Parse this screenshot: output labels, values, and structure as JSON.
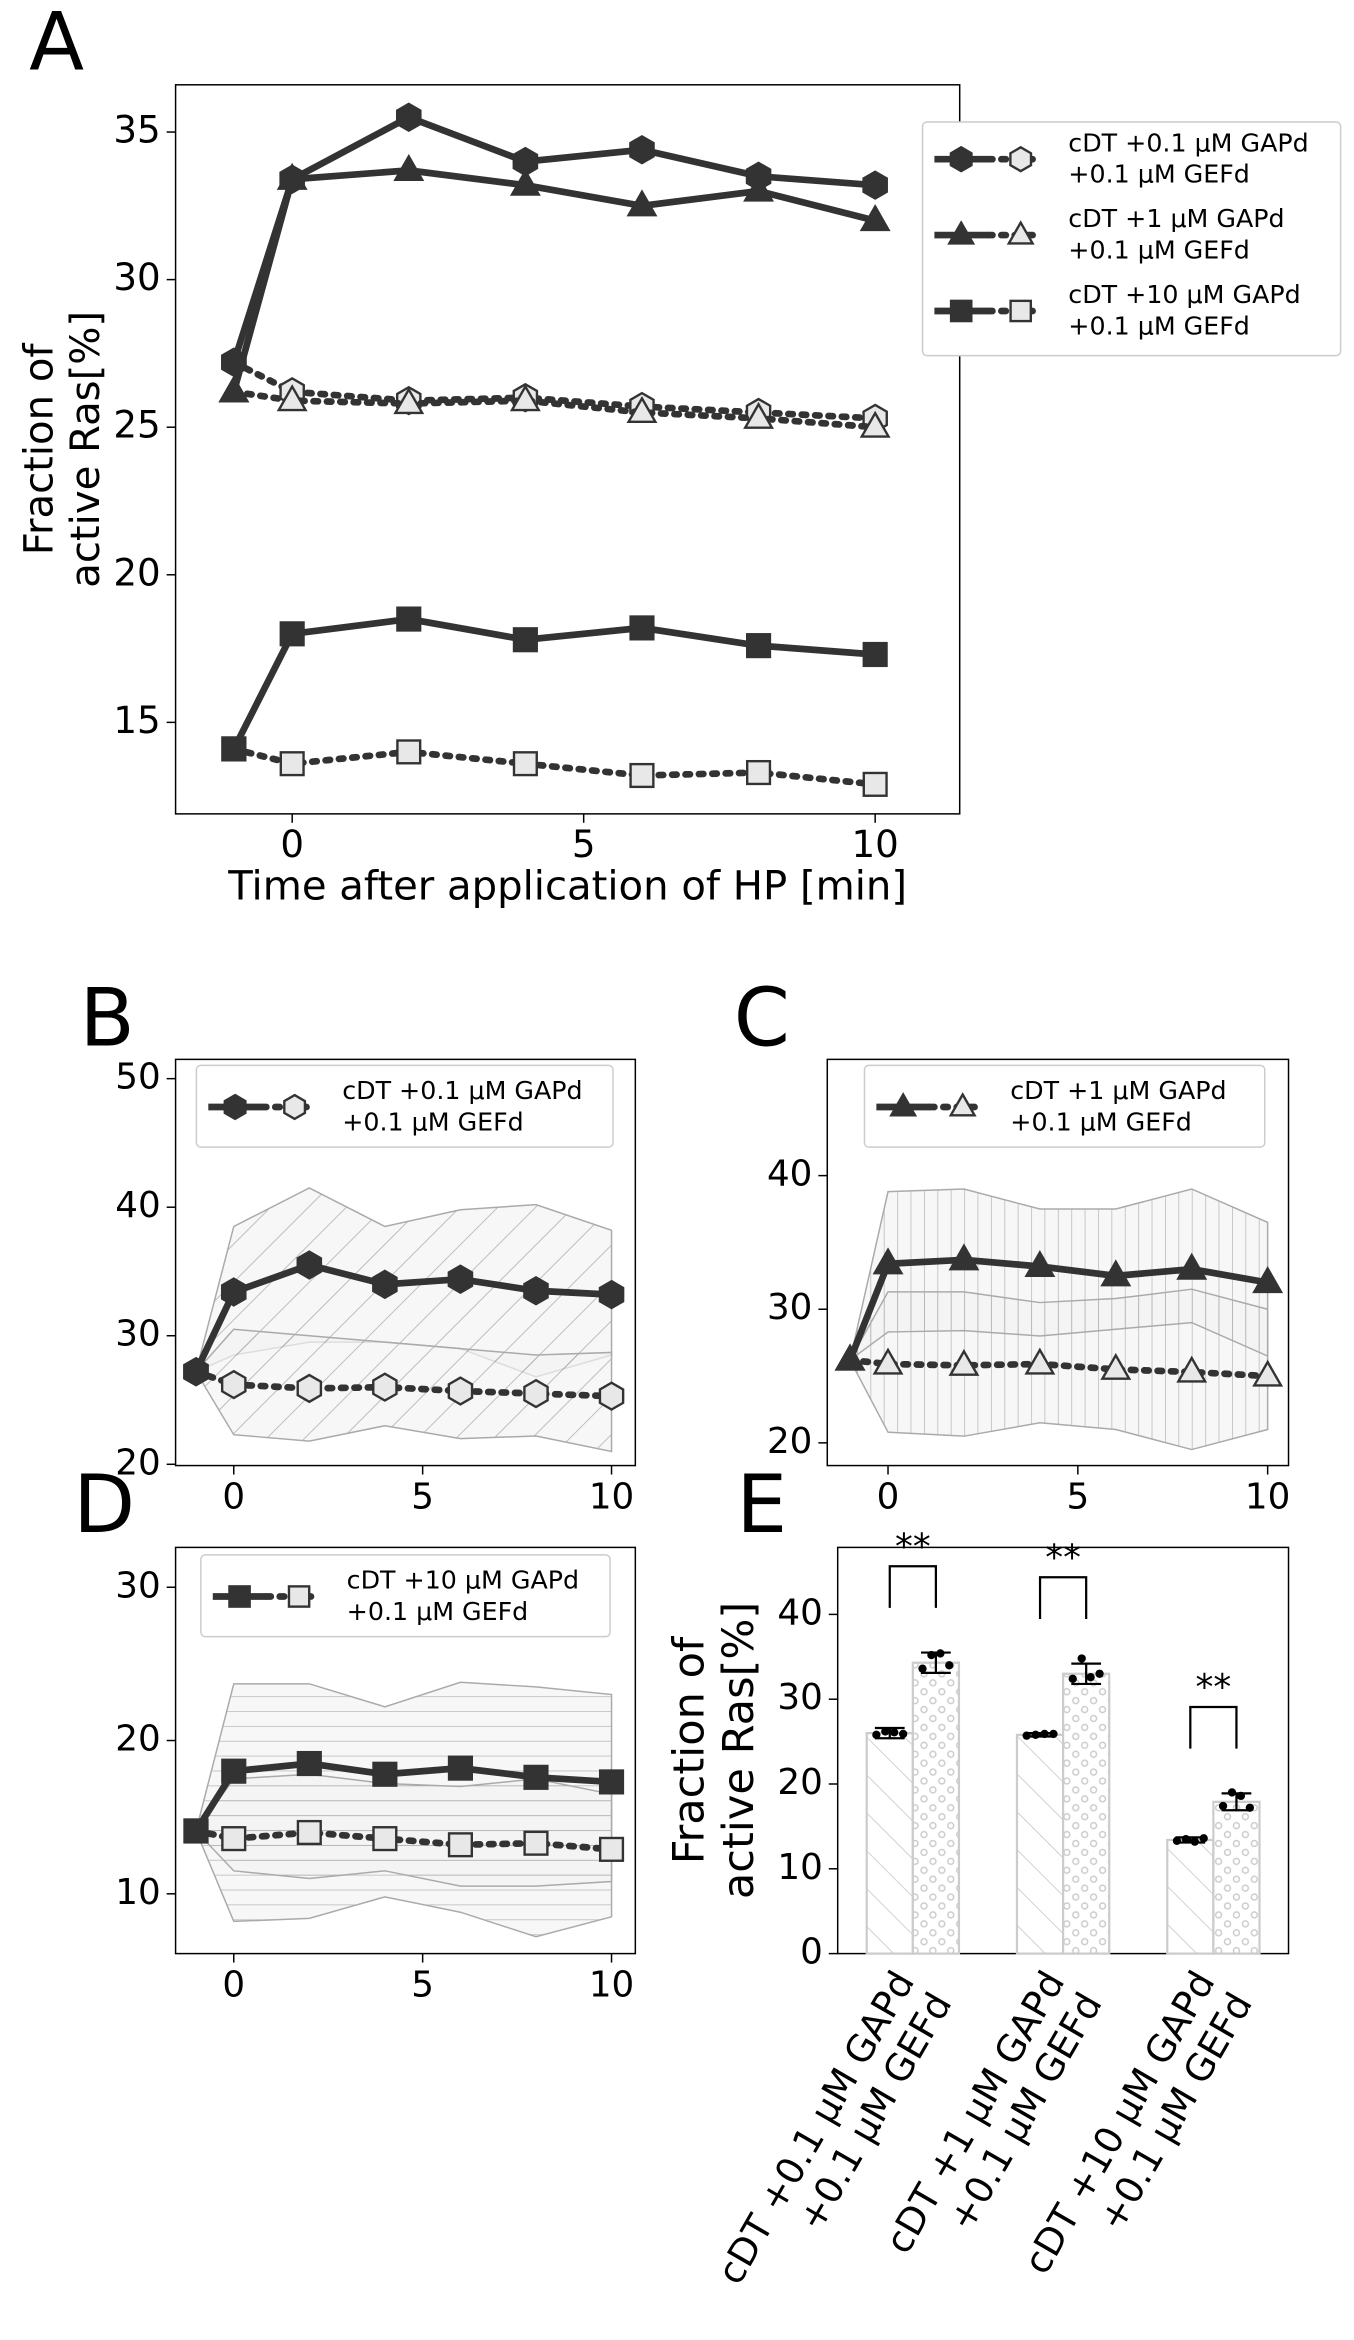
{
  "chart_data": [
    {
      "type": "line",
      "panel_label": "A",
      "x": [
        -1,
        0,
        2,
        4,
        6,
        8,
        10
      ],
      "xlim": [
        -2,
        11.45
      ],
      "xticks": [
        0,
        5,
        10
      ],
      "ylim": [
        11.9,
        36.6
      ],
      "yticks": [
        15,
        20,
        25,
        30,
        35
      ],
      "xlabel": "Time after application of HP [min]",
      "ylabel": [
        "Fraction of",
        "active Ras[%]"
      ],
      "legend_position": "outside upper right",
      "series": [
        {
          "name": [
            "cDT +0.1 μM GAPd",
            "+0.1 μM GEFd"
          ],
          "marker": "hexagon",
          "color": "#333333",
          "open_color": "#e8e8e8",
          "values": [
            27.2,
            33.4,
            35.5,
            34.0,
            34.4,
            33.5,
            33.2
          ],
          "open_values": [
            27.2,
            26.2,
            25.9,
            26.0,
            25.7,
            25.5,
            25.3
          ]
        },
        {
          "name": [
            "cDT +1 μM GAPd",
            "+0.1 μM GEFd"
          ],
          "marker": "triangle",
          "color": "#333333",
          "open_color": "#e8e8e8",
          "values": [
            26.2,
            33.4,
            33.7,
            33.2,
            32.5,
            33.0,
            32.0
          ],
          "open_values": [
            26.2,
            25.9,
            25.8,
            25.9,
            25.5,
            25.3,
            25.0
          ]
        },
        {
          "name": [
            "cDT +10 μM GAPd",
            "+0.1 μM GEFd"
          ],
          "marker": "square",
          "color": "#333333",
          "open_color": "#e8e8e8",
          "values": [
            14.1,
            18.0,
            18.5,
            17.8,
            18.2,
            17.6,
            17.3
          ],
          "open_values": [
            14.1,
            13.6,
            14.0,
            13.6,
            13.2,
            13.3,
            12.9
          ]
        }
      ]
    },
    {
      "type": "band-line",
      "panel_label": "B",
      "hatch": "diagonal",
      "x": [
        -1,
        0,
        2,
        4,
        6,
        8,
        10
      ],
      "xlim": [
        -1.54,
        10.63
      ],
      "xticks": [
        0,
        5,
        10
      ],
      "ylim": [
        19.9,
        51.5
      ],
      "yticks": [
        20,
        30,
        40,
        50
      ],
      "legend_position": "upper center",
      "series": [
        {
          "name": [
            "cDT +0.1 μM GAPd",
            "+0.1 μM GEFd"
          ],
          "marker": "hexagon",
          "color": "#333333",
          "open_color": "#e8e8e8",
          "values": [
            27.2,
            33.4,
            35.5,
            34.0,
            34.4,
            33.5,
            33.2
          ],
          "open_values": [
            27.2,
            26.2,
            25.9,
            26.0,
            25.7,
            25.5,
            25.3
          ],
          "band_upper": [
            27.2,
            38.5,
            41.5,
            38.5,
            39.8,
            40.2,
            38.2
          ],
          "band_lower": [
            27.2,
            28.5,
            29.5,
            29.5,
            29.0,
            26.8,
            28.5
          ],
          "open_band_upper": [
            27.2,
            30.5,
            30.0,
            29.5,
            29.0,
            28.5,
            28.7
          ],
          "open_band_lower": [
            27.2,
            22.3,
            21.8,
            23.0,
            22.0,
            22.2,
            21.0
          ]
        }
      ]
    },
    {
      "type": "band-line",
      "panel_label": "C",
      "hatch": "vertical",
      "x": [
        -1,
        0,
        2,
        4,
        6,
        8,
        10
      ],
      "xlim": [
        -1.6,
        10.55
      ],
      "xticks": [
        0,
        5,
        10
      ],
      "ylim": [
        18.3,
        48.7
      ],
      "yticks": [
        20,
        30,
        40
      ],
      "legend_position": "upper center",
      "series": [
        {
          "name": [
            "cDT +1 μM GAPd",
            "+0.1 μM GEFd"
          ],
          "marker": "triangle",
          "color": "#333333",
          "open_color": "#e8e8e8",
          "values": [
            26.2,
            33.4,
            33.7,
            33.2,
            32.5,
            33.0,
            32.0
          ],
          "open_values": [
            26.2,
            25.9,
            25.8,
            25.9,
            25.5,
            25.3,
            25.0
          ],
          "band_upper": [
            26.2,
            38.8,
            39.0,
            37.5,
            37.5,
            39.0,
            36.5
          ],
          "band_lower": [
            26.2,
            20.8,
            20.5,
            21.5,
            21.0,
            19.5,
            21.0
          ],
          "open_band_upper": [
            26.2,
            31.3,
            31.3,
            30.5,
            30.8,
            31.5,
            30.0
          ],
          "open_band_lower": [
            26.2,
            28.3,
            28.4,
            28.0,
            28.5,
            29.0,
            26.5
          ]
        }
      ]
    },
    {
      "type": "band-line",
      "panel_label": "D",
      "hatch": "horizontal",
      "x": [
        -1,
        0,
        2,
        4,
        6,
        8,
        10
      ],
      "xlim": [
        -1.54,
        10.63
      ],
      "xticks": [
        0,
        5,
        10
      ],
      "ylim": [
        6.1,
        32.6
      ],
      "yticks": [
        10,
        20,
        30
      ],
      "legend_position": "upper center",
      "series": [
        {
          "name": [
            "cDT +10 μM GAPd",
            "+0.1 μM GEFd"
          ],
          "marker": "square",
          "color": "#333333",
          "open_color": "#e8e8e8",
          "values": [
            14.1,
            18.0,
            18.5,
            17.8,
            18.2,
            17.6,
            17.3
          ],
          "open_values": [
            14.1,
            13.6,
            14.0,
            13.6,
            13.2,
            13.3,
            12.9
          ],
          "band_upper": [
            14.1,
            23.7,
            23.7,
            22.2,
            23.8,
            23.5,
            23.0
          ],
          "band_lower": [
            14.1,
            8.2,
            8.4,
            9.8,
            8.8,
            7.2,
            8.5
          ],
          "open_band_upper": [
            14.1,
            17.5,
            17.8,
            17.2,
            17.0,
            17.5,
            16.5
          ],
          "open_band_lower": [
            14.1,
            11.5,
            11.0,
            11.5,
            10.5,
            10.5,
            10.8
          ]
        }
      ]
    },
    {
      "type": "bar",
      "panel_label": "E",
      "categories": [
        [
          "cDT +0.1 μM GAPd",
          "+0.1 μM GEFd"
        ],
        [
          "cDT +1 μM GAPd",
          "+0.1 μM GEFd"
        ],
        [
          "cDT +10 μM GAPd",
          "+0.1 μM GEFd"
        ]
      ],
      "ylabel": [
        "Fraction of",
        "active Ras[%]"
      ],
      "ylim": [
        0,
        47.9
      ],
      "yticks": [
        0,
        10,
        20,
        30,
        40
      ],
      "series": [
        {
          "hatch": "diagonal",
          "color": "#cccccc",
          "values": [
            26.0,
            25.8,
            13.4
          ],
          "errors": [
            0.6,
            0.2,
            0.3
          ],
          "points": [
            [
              25.8,
              26.2,
              26.1,
              25.9
            ],
            [
              25.7,
              25.8,
              25.9,
              25.9
            ],
            [
              13.3,
              13.5,
              13.2,
              13.6
            ]
          ]
        },
        {
          "hatch": "dots",
          "color": "#cccccc",
          "values": [
            34.3,
            33.0,
            17.9
          ],
          "errors": [
            1.2,
            1.2,
            1.0
          ],
          "points": [
            [
              33.6,
              35.2,
              35.4,
              34.0
            ],
            [
              32.4,
              34.8,
              32.6,
              33.0
            ],
            [
              17.4,
              19.0,
              18.6,
              17.2
            ]
          ]
        }
      ],
      "significance": [
        "**",
        "**",
        "**"
      ]
    }
  ]
}
